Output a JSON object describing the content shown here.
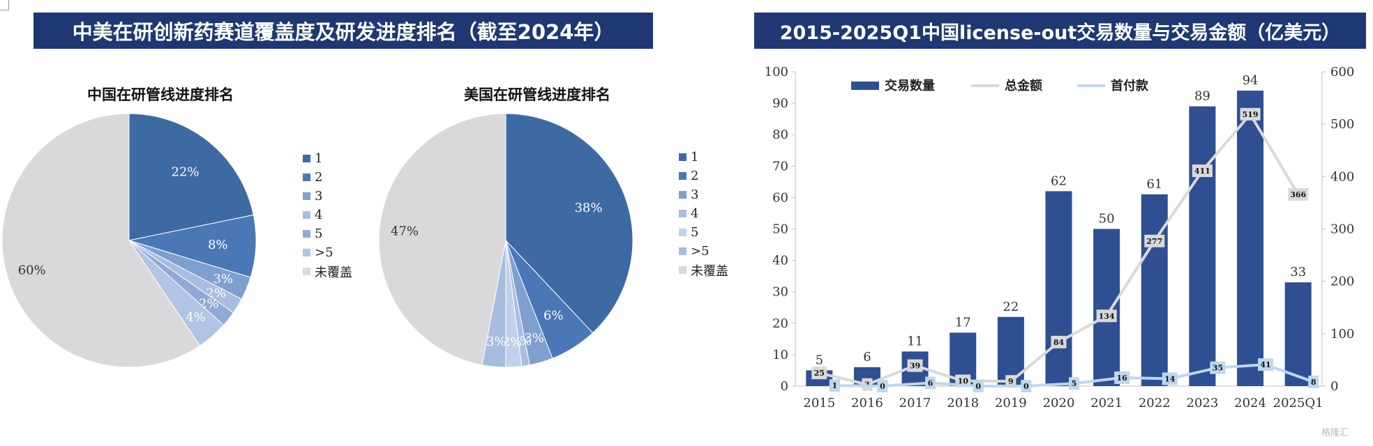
{
  "banners": {
    "left": "中美在研创新药赛道覆盖度及研发进度排名（截至2024年）",
    "right": "2015-2025Q1中国license-out交易数量与交易金额（亿美元）"
  },
  "watermark": "格隆汇",
  "colors": {
    "banner": "#1f3773",
    "bar": "#2e4f92",
    "total_line": "#d9d9d9",
    "upfront_line": "#bdd7ee"
  },
  "chart_data": [
    {
      "type": "pie",
      "title": "中国在研管线进度排名",
      "legend": [
        "1",
        "2",
        "3",
        "4",
        "5",
        ">5",
        "未覆盖"
      ],
      "values": [
        22,
        8,
        3,
        2,
        2,
        4,
        60
      ],
      "labels": [
        "22%",
        "8%",
        "3%",
        "2%",
        "2%",
        "4%",
        "60%"
      ],
      "colors": [
        "#3d6aa3",
        "#4a78b7",
        "#7f9fcf",
        "#a9bde0",
        "#8faad5",
        "#b2c4e4",
        "#d9d9d9"
      ]
    },
    {
      "type": "pie",
      "title": "美国在研管线进度排名",
      "legend": [
        "1",
        "2",
        "3",
        "4",
        "5",
        ">5",
        "未覆盖"
      ],
      "values": [
        38,
        6,
        3,
        1,
        2,
        3,
        47
      ],
      "labels": [
        "38%",
        "6%",
        "3%",
        "1%",
        "2%",
        "3%",
        "47%"
      ],
      "colors": [
        "#3d6aa3",
        "#4a78b7",
        "#7f9fcf",
        "#a9bde0",
        "#c2d0ea",
        "#a8bce0",
        "#d9d9d9"
      ]
    },
    {
      "type": "bar",
      "categories": [
        "2015",
        "2016",
        "2017",
        "2018",
        "2019",
        "2020",
        "2021",
        "2022",
        "2023",
        "2024",
        "2025Q1"
      ],
      "series": [
        {
          "name": "交易数量",
          "kind": "bar",
          "axis": "left",
          "values": [
            5,
            6,
            11,
            17,
            22,
            62,
            50,
            61,
            89,
            94,
            33
          ]
        },
        {
          "name": "总金额",
          "kind": "line",
          "axis": "right",
          "values": [
            25,
            3,
            39,
            10,
            9,
            84,
            134,
            277,
            411,
            519,
            366
          ]
        },
        {
          "name": "首付款",
          "kind": "line",
          "axis": "right",
          "values": [
            1,
            0,
            6,
            0,
            0,
            5,
            16,
            14,
            35,
            41,
            8
          ]
        }
      ],
      "ylim_left": [
        0,
        100
      ],
      "yticks_left": [
        0,
        10,
        20,
        30,
        40,
        50,
        60,
        70,
        80,
        90,
        100
      ],
      "ylim_right": [
        0,
        600
      ],
      "yticks_right": [
        0,
        100,
        200,
        300,
        400,
        500,
        600
      ],
      "legend_placement": "top-left"
    }
  ]
}
